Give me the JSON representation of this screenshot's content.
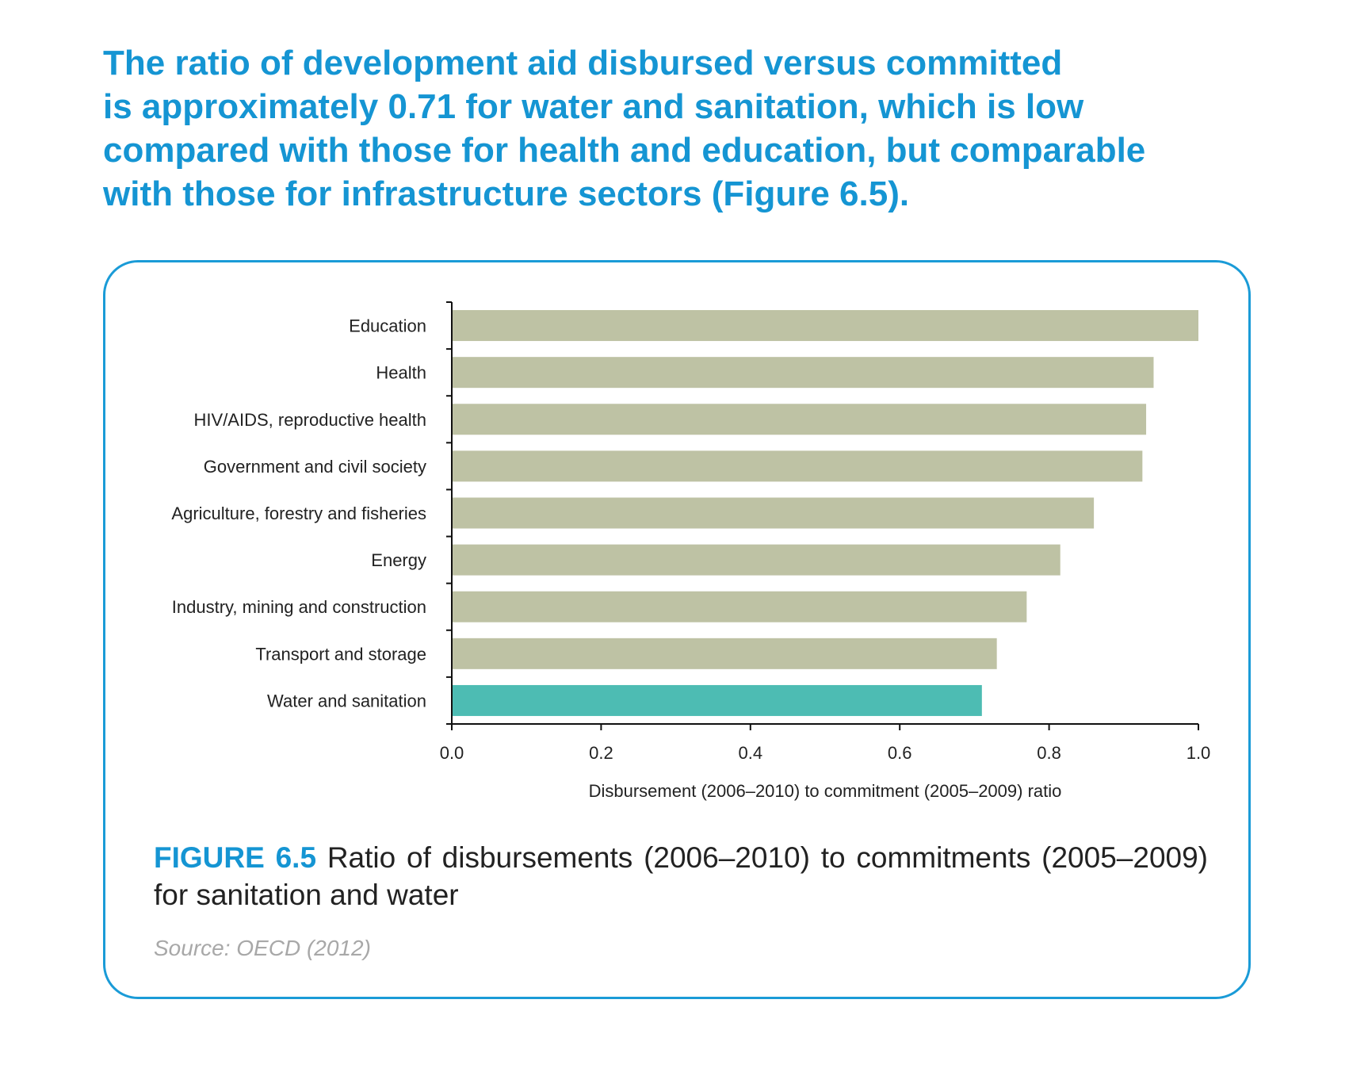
{
  "headline": {
    "lines": [
      "The ratio of development aid disbursed versus committed",
      "is approximately 0.71 for water and sanitation, which is low",
      "compared with those for health and education, but comparable",
      "with those for infrastructure sectors (Figure 6.5)."
    ]
  },
  "figure": {
    "label": "FIGURE 6.5",
    "caption": " Ratio of disbursements (2006–2010) to commitments (2005–2009) for sanitation and water",
    "source": "Source: OECD (2012)"
  },
  "colors": {
    "accent": "#1595d3",
    "bar_default": "#bec2a4",
    "bar_highlight": "#4dbcb3"
  },
  "chart_data": {
    "type": "bar",
    "orientation": "horizontal",
    "categories": [
      "Education",
      "Health",
      "HIV/AIDS, reproductive health",
      "Government and civil society",
      "Agriculture, forestry and fisheries",
      "Energy",
      "Industry, mining and construction",
      "Transport and storage",
      "Water and sanitation"
    ],
    "values": [
      1.0,
      0.94,
      0.93,
      0.925,
      0.86,
      0.815,
      0.77,
      0.73,
      0.71
    ],
    "highlight": "Water and sanitation",
    "xlabel": "Disbursement (2006–2010) to commitment (2005–2009) ratio",
    "ylabel": "",
    "xlim": [
      0,
      1.0
    ],
    "xticks": [
      "0.0",
      "0.2",
      "0.4",
      "0.6",
      "0.8",
      "1.0"
    ],
    "grid": false,
    "legend": "none"
  }
}
